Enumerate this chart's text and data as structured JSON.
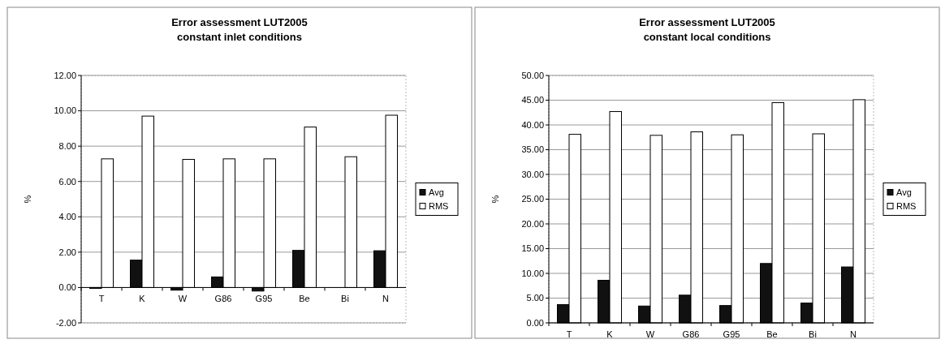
{
  "chart_data": [
    {
      "type": "bar",
      "title": "Error assessment LUT2005\nconstant inlet conditions",
      "ylabel": "%",
      "categories": [
        "T",
        "K",
        "W",
        "G86",
        "G95",
        "Be",
        "Bi",
        "N"
      ],
      "series": [
        {
          "name": "Avg",
          "color": "#111111",
          "values": [
            -0.05,
            1.55,
            -0.15,
            0.6,
            -0.2,
            2.1,
            0,
            2.08
          ]
        },
        {
          "name": "RMS",
          "color": "#ffffff",
          "values": [
            7.28,
            9.7,
            7.25,
            7.28,
            7.28,
            9.08,
            7.4,
            9.75
          ]
        }
      ],
      "ylim": [
        -2,
        12
      ],
      "yticks": [
        {
          "value": -2,
          "label": "-2.00"
        },
        {
          "value": 0,
          "label": "0.00"
        },
        {
          "value": 2,
          "label": "2.00"
        },
        {
          "value": 4,
          "label": "4.00"
        },
        {
          "value": 6,
          "label": "6.00"
        },
        {
          "value": 8,
          "label": "8.00"
        },
        {
          "value": 10,
          "label": "10.00"
        },
        {
          "value": 12,
          "label": "12.00"
        }
      ],
      "grid": "y",
      "legend": "right"
    },
    {
      "type": "bar",
      "title": "Error assessment LUT2005\nconstant local conditions",
      "ylabel": "%",
      "categories": [
        "T",
        "K",
        "W",
        "G86",
        "G95",
        "Be",
        "Bi",
        "N"
      ],
      "series": [
        {
          "name": "Avg",
          "color": "#111111",
          "values": [
            3.7,
            8.6,
            3.4,
            5.6,
            3.5,
            12.0,
            4.0,
            11.3
          ]
        },
        {
          "name": "RMS",
          "color": "#ffffff",
          "values": [
            38.1,
            42.7,
            37.9,
            38.6,
            38.0,
            44.5,
            38.2,
            45.1
          ]
        }
      ],
      "ylim": [
        0,
        50
      ],
      "yticks": [
        {
          "value": 0,
          "label": "0.00"
        },
        {
          "value": 5,
          "label": "5.00"
        },
        {
          "value": 10,
          "label": "10.00"
        },
        {
          "value": 15,
          "label": "15.00"
        },
        {
          "value": 20,
          "label": "20.00"
        },
        {
          "value": 25,
          "label": "25.00"
        },
        {
          "value": 30,
          "label": "30.00"
        },
        {
          "value": 35,
          "label": "35.00"
        },
        {
          "value": 40,
          "label": "40.00"
        },
        {
          "value": 45,
          "label": "45.00"
        },
        {
          "value": 50,
          "label": "50.00"
        }
      ],
      "grid": "y",
      "legend": "right"
    }
  ]
}
